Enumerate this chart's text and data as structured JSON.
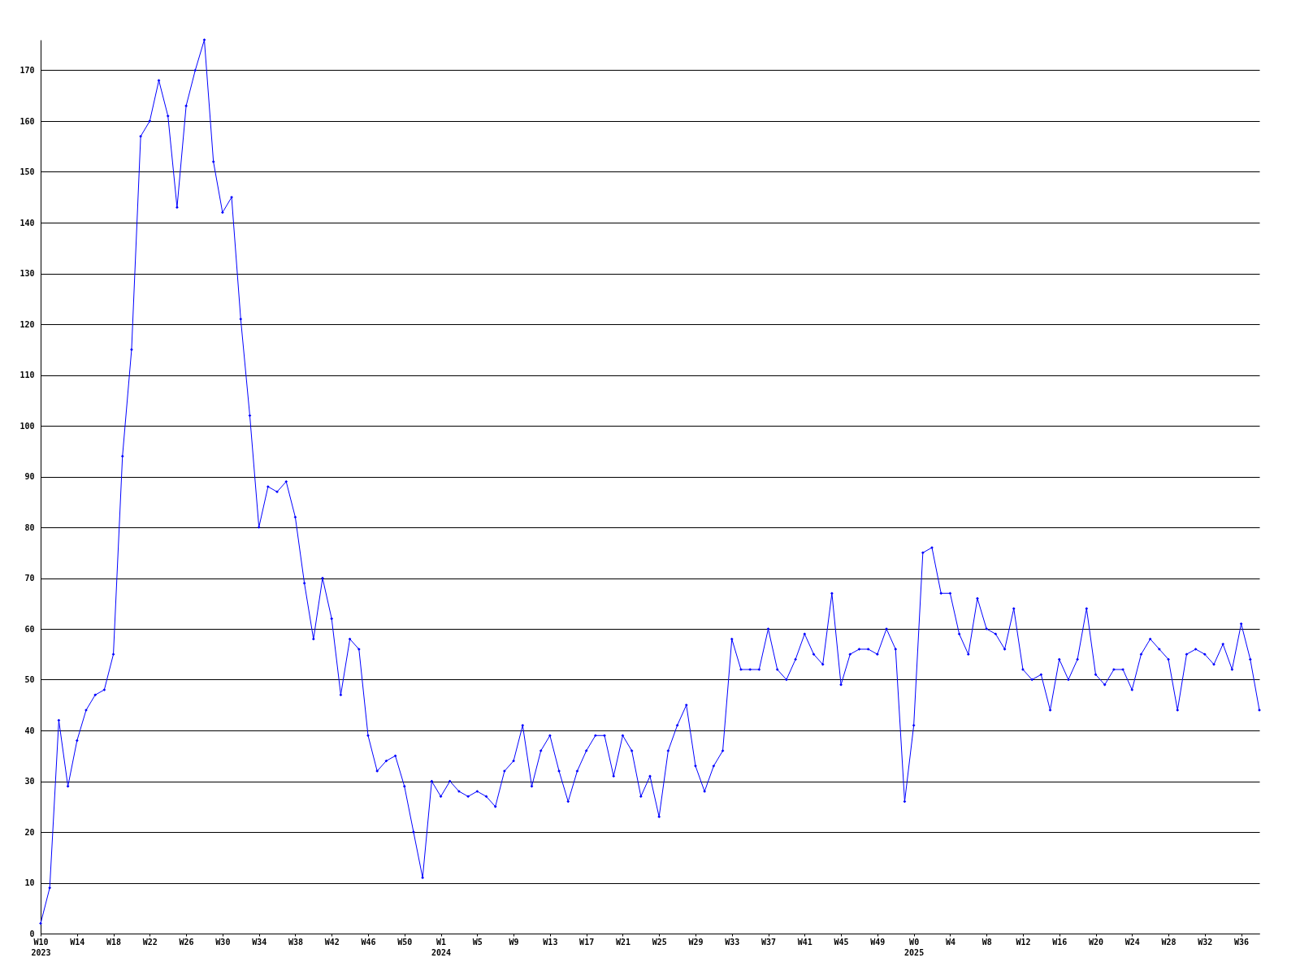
{
  "chart_data": {
    "type": "line",
    "categories": [
      "W10\n2023",
      null,
      null,
      null,
      "W14",
      null,
      null,
      null,
      "W18",
      null,
      null,
      null,
      "W22",
      null,
      null,
      null,
      "W26",
      null,
      null,
      null,
      "W30",
      null,
      null,
      null,
      "W34",
      null,
      null,
      null,
      "W38",
      null,
      null,
      null,
      "W42",
      null,
      null,
      null,
      "W46",
      null,
      null,
      null,
      "W50",
      null,
      null,
      null,
      "W1\n2024",
      null,
      null,
      null,
      "W5",
      null,
      null,
      null,
      "W9",
      null,
      null,
      null,
      "W13",
      null,
      null,
      null,
      "W17",
      null,
      null,
      null,
      "W21",
      null,
      null,
      null,
      "W25",
      null,
      null,
      null,
      "W29",
      null,
      null,
      null,
      "W33",
      null,
      null,
      null,
      "W37",
      null,
      null,
      null,
      "W41",
      null,
      null,
      null,
      "W45",
      null,
      null,
      null,
      "W49",
      null,
      null,
      null,
      "W0\n2025",
      null,
      null,
      null,
      "W4",
      null,
      null,
      null,
      "W8",
      null,
      null,
      null,
      "W12",
      null,
      null,
      null,
      "W16",
      null,
      null,
      null,
      "W20",
      null,
      null,
      null,
      "W24",
      null,
      null,
      null,
      "W28",
      null,
      null,
      null,
      "W32",
      null,
      null,
      null,
      "W36",
      null,
      null
    ],
    "series": [
      {
        "color": "#0000ff",
        "values": [
          2,
          9,
          42,
          29,
          38,
          44,
          47,
          48,
          55,
          94,
          115,
          157,
          160,
          168,
          161,
          143,
          163,
          170,
          176,
          152,
          142,
          145,
          121,
          102,
          80,
          88,
          87,
          89,
          82,
          69,
          58,
          70,
          62,
          47,
          58,
          56,
          39,
          32,
          34,
          35,
          29,
          20,
          11,
          30,
          27,
          30,
          28,
          27,
          28,
          27,
          25,
          32,
          34,
          41,
          29,
          36,
          39,
          32,
          26,
          32,
          36,
          39,
          39,
          31,
          39,
          36,
          27,
          31,
          23,
          36,
          41,
          45,
          33,
          28,
          33,
          36,
          58,
          52,
          52,
          52,
          60,
          52,
          50,
          54,
          59,
          55,
          53,
          67,
          49,
          55,
          56,
          56,
          55,
          60,
          56,
          26,
          41,
          75,
          76,
          67,
          67,
          59,
          55,
          66,
          60,
          59,
          56,
          64,
          52,
          50,
          51,
          44,
          54,
          50,
          54,
          64,
          51,
          49,
          52,
          52,
          48,
          55,
          58,
          56,
          54,
          44,
          55,
          56,
          55,
          53,
          57,
          52,
          61,
          54,
          44
        ]
      }
    ],
    "ylim": [
      0,
      176
    ],
    "yticks": [
      0,
      10,
      20,
      30,
      40,
      50,
      60,
      70,
      80,
      90,
      100,
      110,
      120,
      130,
      140,
      150,
      160,
      170
    ],
    "grid": "y",
    "marker": "diamond",
    "line_style": "solid"
  }
}
